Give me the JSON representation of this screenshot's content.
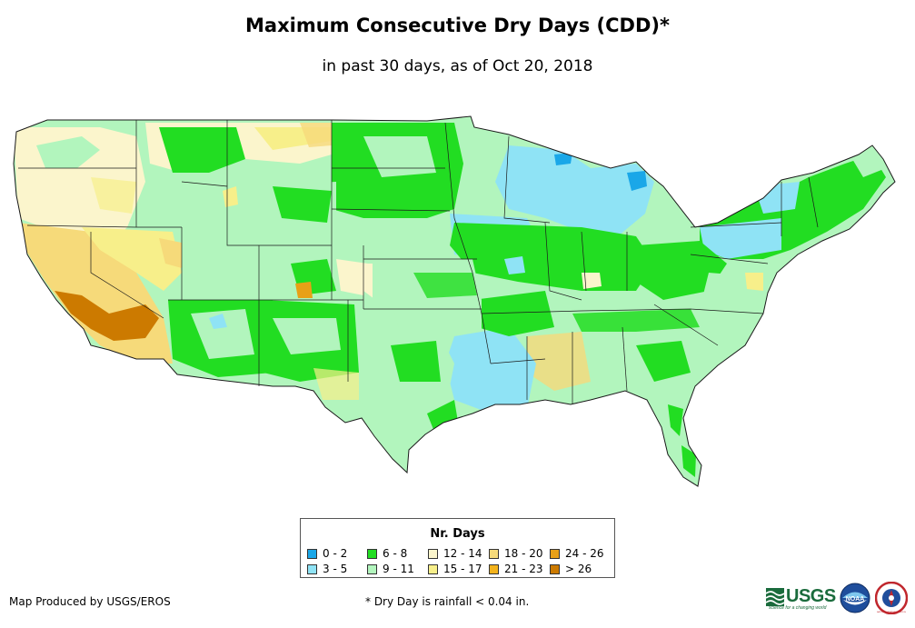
{
  "title": "Maximum Consecutive Dry Days (CDD)*",
  "subtitle": "in past 30 days, as of Oct 20, 2018",
  "legend": {
    "title": "Nr. Days",
    "items": [
      {
        "label": "0 - 2",
        "color": "#1aa7e8"
      },
      {
        "label": "3 - 5",
        "color": "#8fe3f5"
      },
      {
        "label": "6 - 8",
        "color": "#22dd22"
      },
      {
        "label": "9 - 11",
        "color": "#b2f5bd"
      },
      {
        "label": "12 - 14",
        "color": "#fbf5cc"
      },
      {
        "label": "15 - 17",
        "color": "#f7ef8a"
      },
      {
        "label": "18 - 20",
        "color": "#f6da7a"
      },
      {
        "label": "21 - 23",
        "color": "#f3b31c"
      },
      {
        "label": "24 - 26",
        "color": "#e8a017"
      },
      {
        "label": "> 26",
        "color": "#cc7a00"
      }
    ]
  },
  "credit": "Map Produced by USGS/EROS",
  "footnote": "* Dry Day is rainfall < 0.04 in.",
  "logos": {
    "usgs": "USGS",
    "usgs_tagline": "science for a changing world",
    "noaa": "NOAA",
    "nws": "NATIONAL WEATHER SERVICE"
  }
}
